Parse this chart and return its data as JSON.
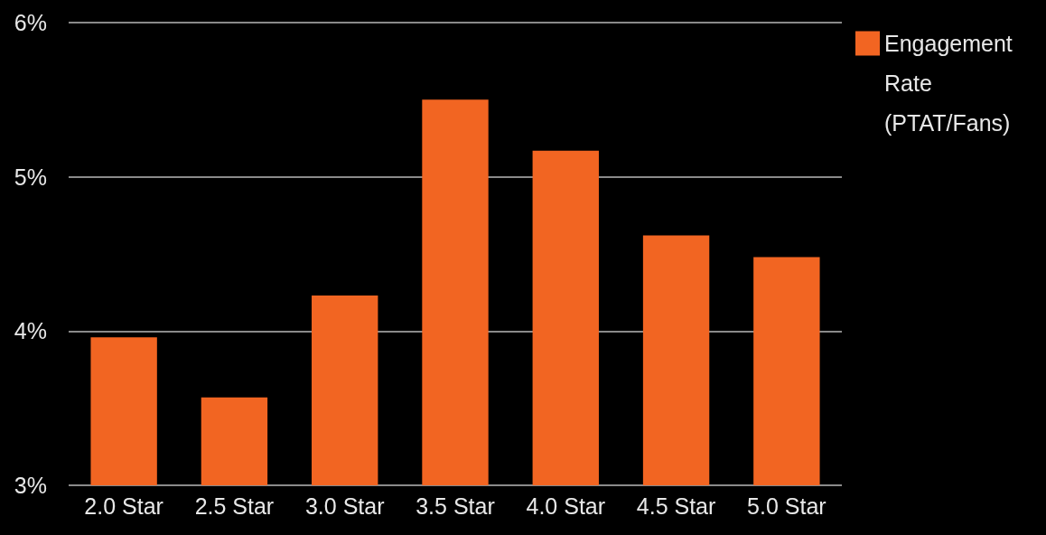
{
  "chart_data": {
    "type": "bar",
    "categories": [
      "2.0 Star",
      "2.5 Star",
      "3.0 Star",
      "3.5 Star",
      "4.0 Star",
      "4.5 Star",
      "5.0 Star"
    ],
    "series": [
      {
        "name": "Engagement Rate (PTAT/Fans)",
        "color": "#f26522",
        "values": [
          3.96,
          3.57,
          4.23,
          5.5,
          5.17,
          4.62,
          4.48
        ]
      }
    ],
    "ylim": [
      3,
      6
    ],
    "yticks": [
      {
        "value": 3,
        "label": "3%"
      },
      {
        "value": 4,
        "label": "4%"
      },
      {
        "value": 5,
        "label": "5%"
      },
      {
        "value": 6,
        "label": "6%"
      }
    ],
    "grid": "y",
    "legend": "top right"
  }
}
